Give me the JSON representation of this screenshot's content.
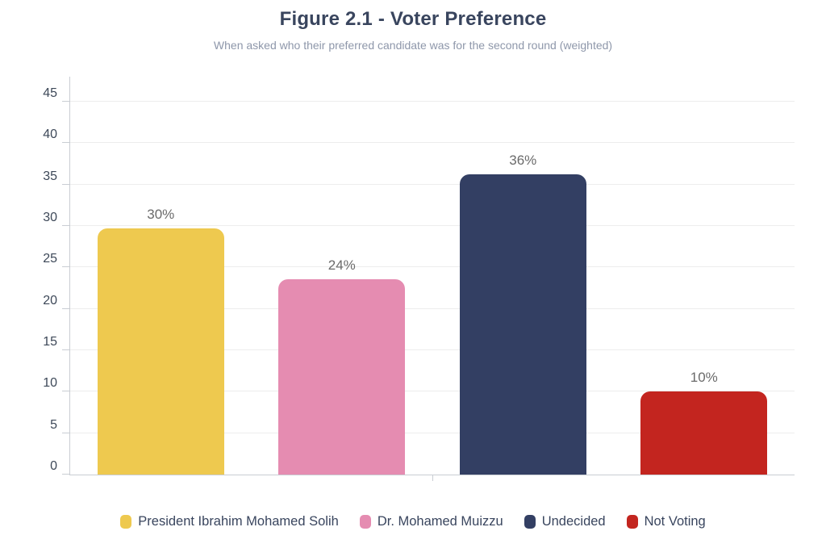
{
  "page": {
    "title": "Figure 2.1 - Voter Preference",
    "subtitle": "When asked who their preferred candidate was for the second round (weighted)"
  },
  "chart_data": {
    "type": "bar",
    "title": "Figure 2.1 - Voter Preference",
    "subtitle": "When asked who their preferred candidate was for the second round (weighted)",
    "categories": [
      "President Ibrahim Mohamed Solih",
      "Dr. Mohamed Muizzu",
      "Undecided",
      "Not Voting"
    ],
    "values": [
      29.7,
      23.6,
      36.2,
      10
    ],
    "value_labels": [
      "30%",
      "24%",
      "36%",
      "10%"
    ],
    "bar_colors": [
      "#eec94f",
      "#e58cb1",
      "#333f63",
      "#c3251f"
    ],
    "xlabel": "",
    "ylabel": "",
    "ylim": [
      0,
      48
    ],
    "yticks": [
      0,
      5,
      10,
      15,
      20,
      25,
      30,
      35,
      40,
      45
    ],
    "grid": true,
    "legend_position": "bottom",
    "bar_width_fraction": 0.7
  },
  "colors": {
    "title_text": "#39455e",
    "subtitle_text": "#8e97aa",
    "tick_text": "#3d4858",
    "value_label_text": "#6a6a6a",
    "legend_text": "#39455e",
    "axis_line": "#c9cdd3",
    "grid_line": "#ededed",
    "background": "#ffffff"
  }
}
